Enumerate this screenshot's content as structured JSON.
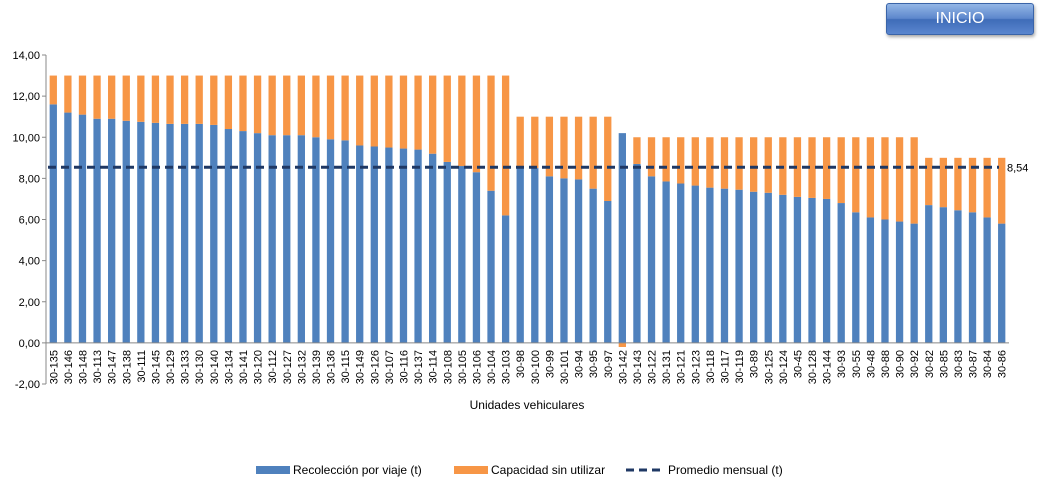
{
  "button": {
    "label": "INICIO"
  },
  "colors": {
    "collected": "#4f81bd",
    "unused": "#f79646",
    "average": "#1f3864"
  },
  "chart_data": {
    "type": "bar",
    "stacked": true,
    "title": "",
    "xlabel": "Unidades vehiculares",
    "ylabel": "",
    "ylim": [
      -2,
      14
    ],
    "yticks": [
      "-2,00",
      "0,00",
      "2,00",
      "4,00",
      "6,00",
      "8,00",
      "10,00",
      "12,00",
      "14,00"
    ],
    "grid": false,
    "legend": "bottom",
    "categories": [
      "30-135",
      "30-146",
      "30-148",
      "30-113",
      "30-147",
      "30-138",
      "30-111",
      "30-145",
      "30-129",
      "30-133",
      "30-130",
      "30-140",
      "30-134",
      "30-141",
      "30-120",
      "30-112",
      "30-127",
      "30-132",
      "30-139",
      "30-136",
      "30-115",
      "30-149",
      "30-126",
      "30-107",
      "30-116",
      "30-137",
      "30-114",
      "30-108",
      "30-105",
      "30-106",
      "30-104",
      "30-103",
      "30-98",
      "30-100",
      "30-99",
      "30-101",
      "30-94",
      "30-95",
      "30-97",
      "30-142",
      "30-143",
      "30-122",
      "30-131",
      "30-121",
      "30-123",
      "30-118",
      "30-117",
      "30-119",
      "30-89",
      "30-125",
      "30-124",
      "30-45",
      "30-128",
      "30-144",
      "30-93",
      "30-55",
      "30-48",
      "30-88",
      "30-90",
      "30-92",
      "30-82",
      "30-85",
      "30-83",
      "30-87",
      "30-84",
      "30-86"
    ],
    "series": [
      {
        "name": "Recolección por viaje (t)",
        "values": [
          11.6,
          11.2,
          11.1,
          10.9,
          10.9,
          10.8,
          10.75,
          10.7,
          10.65,
          10.65,
          10.65,
          10.6,
          10.4,
          10.3,
          10.2,
          10.1,
          10.1,
          10.1,
          10.0,
          9.9,
          9.85,
          9.6,
          9.55,
          9.5,
          9.45,
          9.4,
          9.2,
          8.8,
          8.6,
          8.3,
          7.4,
          6.2,
          8.6,
          8.5,
          8.1,
          8.0,
          7.95,
          7.5,
          6.9,
          10.2,
          8.7,
          8.1,
          7.85,
          7.75,
          7.65,
          7.55,
          7.5,
          7.45,
          7.35,
          7.3,
          7.2,
          7.1,
          7.05,
          7.0,
          6.8,
          6.35,
          6.1,
          6.0,
          5.9,
          5.8,
          6.7,
          6.6,
          6.45,
          6.35,
          6.1,
          5.8
        ]
      },
      {
        "name": "Capacidad sin utilizar",
        "values": [
          1.4,
          1.8,
          1.9,
          2.1,
          2.1,
          2.2,
          2.25,
          2.3,
          2.35,
          2.35,
          2.35,
          2.4,
          2.6,
          2.7,
          2.8,
          2.9,
          2.9,
          2.9,
          3.0,
          3.1,
          3.15,
          3.4,
          3.45,
          3.5,
          3.55,
          3.6,
          3.8,
          4.2,
          4.4,
          4.7,
          5.6,
          6.8,
          2.4,
          2.5,
          2.9,
          3.0,
          3.05,
          3.5,
          4.1,
          -0.2,
          1.3,
          1.9,
          2.15,
          2.25,
          2.35,
          2.45,
          2.5,
          2.55,
          2.65,
          2.7,
          2.8,
          2.9,
          2.95,
          3.0,
          3.2,
          3.65,
          3.9,
          4.0,
          4.1,
          4.2,
          2.3,
          2.4,
          2.55,
          2.65,
          2.9,
          3.2
        ]
      }
    ],
    "average": {
      "name": "Promedio mensual (t)",
      "value": 8.54,
      "label": "8,54"
    }
  }
}
